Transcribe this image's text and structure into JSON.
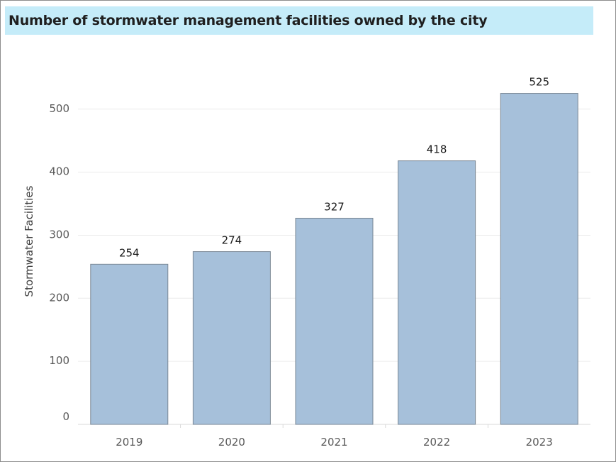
{
  "title": "Number of stormwater management facilities owned by the city",
  "chart_data": {
    "type": "bar",
    "title": "Number of stormwater management facilities owned by the city",
    "categories": [
      "2019",
      "2020",
      "2021",
      "2022",
      "2023"
    ],
    "values": [
      254,
      274,
      327,
      418,
      525
    ],
    "xlabel": "",
    "ylabel": "Stormwater Facilities",
    "ylim": [
      0,
      600
    ],
    "yticks": [
      0,
      100,
      200,
      300,
      400,
      500
    ],
    "grid": true,
    "data_labels": true,
    "legend": "none",
    "colors": {
      "bar_fill": "#a6c0da",
      "bar_stroke": "#7a8794",
      "gridline": "#ececec",
      "title_background": "#c5ecf9"
    }
  }
}
